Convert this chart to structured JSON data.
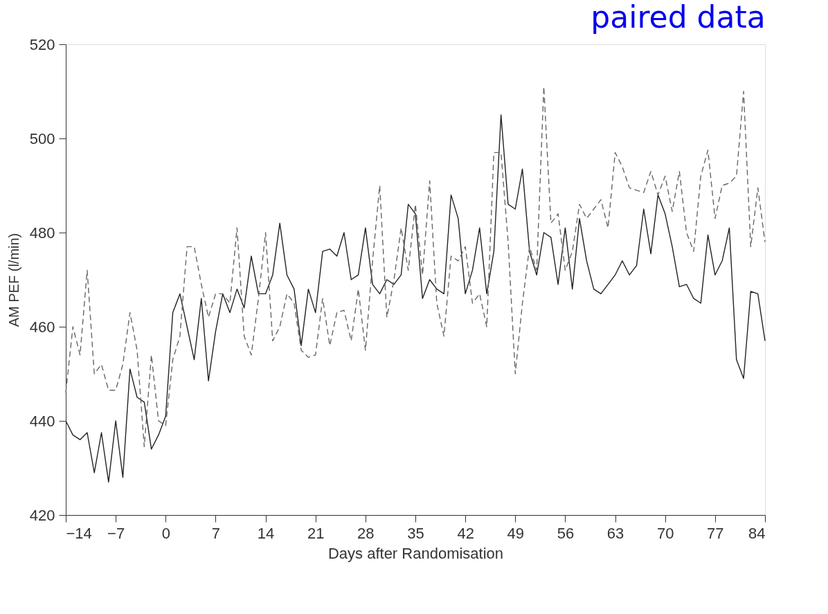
{
  "chart_data": {
    "type": "line",
    "xlabel": "Days after Randomisation",
    "ylabel": "AM PEF (l/min)",
    "annotations": [
      "paired data"
    ],
    "x": [
      -14,
      -13,
      -12,
      -11,
      -10,
      -9,
      -8,
      -7,
      -6,
      -5,
      -4,
      -3,
      -2,
      -1,
      0,
      1,
      2,
      3,
      4,
      5,
      6,
      7,
      8,
      9,
      10,
      11,
      12,
      13,
      14,
      15,
      16,
      17,
      18,
      19,
      20,
      21,
      22,
      23,
      24,
      25,
      26,
      27,
      28,
      29,
      30,
      31,
      32,
      33,
      34,
      35,
      36,
      37,
      38,
      39,
      40,
      41,
      42,
      43,
      44,
      45,
      46,
      47,
      48,
      49,
      50,
      51,
      52,
      53,
      54,
      55,
      56,
      57,
      58,
      59,
      60,
      61,
      62,
      63,
      64,
      65,
      66,
      67,
      68,
      69,
      70,
      71,
      72,
      73,
      74,
      75,
      76,
      77,
      78,
      79,
      80,
      81,
      82,
      83,
      84
    ],
    "series": [
      {
        "color": "#222222",
        "line_style": "solid",
        "values": [
          440,
          437,
          436,
          437.5,
          429,
          437.5,
          427,
          440,
          428,
          451,
          445,
          444,
          434,
          437,
          441,
          463,
          467,
          460,
          453,
          466,
          448.5,
          459,
          467,
          463,
          468,
          464,
          475,
          467,
          467,
          471,
          482,
          471,
          468,
          456,
          468,
          463,
          476,
          476.5,
          475,
          480,
          470,
          471,
          481,
          469,
          467,
          470,
          469,
          471,
          486,
          484,
          466,
          470,
          468,
          467,
          488,
          483,
          467,
          472,
          481,
          467,
          476,
          505,
          486,
          485,
          493.5,
          476,
          471,
          480,
          479,
          469,
          481,
          468,
          483,
          474,
          468,
          467,
          469,
          471,
          474,
          471,
          473,
          485,
          475.5,
          488,
          484,
          477,
          468.5,
          469,
          466,
          465,
          479.5,
          471,
          474,
          481,
          453,
          449,
          467.5,
          467,
          457
        ]
      },
      {
        "color": "#666666",
        "line_style": "dashed",
        "values": [
          446,
          460,
          454,
          472,
          450,
          452,
          446.5,
          446.5,
          452,
          463,
          455,
          434.5,
          454,
          440,
          439,
          453,
          458,
          477,
          477,
          469,
          462,
          467,
          467,
          465,
          481,
          458,
          454,
          466,
          480,
          457,
          460,
          467,
          465,
          455,
          453.5,
          454,
          466,
          456,
          463,
          463.5,
          457,
          468,
          455,
          474,
          490,
          462,
          470,
          481,
          472,
          486,
          471,
          491,
          465,
          458,
          475,
          474,
          477,
          465,
          467,
          460,
          497,
          497,
          478,
          450,
          465,
          477,
          472,
          511,
          482,
          484,
          472,
          476,
          486,
          483,
          485,
          487,
          481,
          497,
          494,
          489.5,
          489,
          488.5,
          493,
          488,
          492,
          484.5,
          493,
          480,
          476,
          492,
          497.5,
          483,
          490,
          490.5,
          492,
          510,
          477,
          489.5,
          478
        ]
      }
    ],
    "xlim": [
      -14,
      84
    ],
    "xticks": [
      -14,
      -7,
      0,
      7,
      14,
      21,
      28,
      35,
      42,
      49,
      56,
      63,
      70,
      77,
      84
    ],
    "ylim": [
      420,
      520
    ],
    "yticks": [
      420,
      440,
      460,
      480,
      500,
      520
    ],
    "grid": false,
    "legend": false
  }
}
